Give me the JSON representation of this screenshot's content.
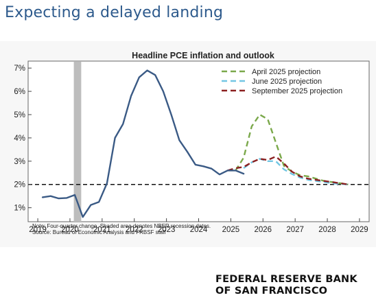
{
  "headline": "Expecting a delayed landing",
  "notes": {
    "line1": "Note: Four-quarter change. Shaded area denotes NBER recession dates.",
    "line2": "Source:  Bureau of Economic Analysis and FRBSF staff"
  },
  "brand": {
    "line1": "FEDERAL RESERVE BANK",
    "line2": "OF SAN FRANCISCO"
  },
  "chart_data": {
    "type": "line",
    "title": "Headline PCE inflation and outlook",
    "xlabel": "",
    "ylabel": "",
    "xlim": [
      2018.7,
      2029.3
    ],
    "ylim": [
      0.4,
      7.3
    ],
    "x_ticks": [
      2019,
      2020,
      2021,
      2022,
      2023,
      2024,
      2025,
      2026,
      2027,
      2028,
      2029
    ],
    "y_ticks": [
      1,
      2,
      3,
      4,
      5,
      6,
      7
    ],
    "y_tick_labels": [
      "1%",
      "2%",
      "3%",
      "4%",
      "5%",
      "6%",
      "7%"
    ],
    "grid": false,
    "legend_position": "top-right",
    "reference_line": {
      "y": 2,
      "style": "dashed",
      "color": "#111111"
    },
    "recession_shading": {
      "x_start": 2020.12,
      "x_end": 2020.35,
      "color": "#bdbdbd"
    },
    "series": [
      {
        "name": "",
        "style": "solid",
        "color": "#3a5a85",
        "x": [
          2019.15,
          2019.4,
          2019.65,
          2019.9,
          2020.15,
          2020.4,
          2020.65,
          2020.9,
          2021.15,
          2021.4,
          2021.65,
          2021.9,
          2022.15,
          2022.4,
          2022.65,
          2022.9,
          2023.15,
          2023.4,
          2023.65,
          2023.9,
          2024.15,
          2024.4,
          2024.65,
          2024.9,
          2025.15,
          2025.4
        ],
        "y": [
          1.45,
          1.5,
          1.4,
          1.42,
          1.55,
          0.6,
          1.12,
          1.25,
          2.05,
          4.0,
          4.6,
          5.8,
          6.6,
          6.9,
          6.7,
          6.0,
          5.0,
          3.9,
          3.4,
          2.85,
          2.78,
          2.68,
          2.43,
          2.6,
          2.6,
          2.46
        ]
      },
      {
        "name": "April 2025 projection",
        "style": "dashed",
        "color": "#7aa84a",
        "x": [
          2025.15,
          2025.4,
          2025.65,
          2025.9,
          2026.15,
          2026.4,
          2026.65,
          2026.9,
          2027.15,
          2027.4,
          2027.65,
          2027.9,
          2028.15,
          2028.4,
          2028.65
        ],
        "y": [
          2.6,
          3.15,
          4.5,
          5.0,
          4.8,
          3.8,
          2.8,
          2.55,
          2.4,
          2.35,
          2.25,
          2.15,
          2.1,
          2.05,
          2.0
        ]
      },
      {
        "name": "June 2025 projection",
        "style": "dashed",
        "color": "#72c6e3",
        "x": [
          2025.4,
          2025.65,
          2025.9,
          2026.15,
          2026.4,
          2026.65,
          2026.9,
          2027.15,
          2027.4,
          2027.65,
          2027.9,
          2028.15,
          2028.4,
          2028.65
        ],
        "y": [
          2.7,
          2.95,
          3.1,
          3.0,
          3.0,
          2.65,
          2.45,
          2.3,
          2.2,
          2.15,
          2.1,
          2.05,
          2.02,
          2.0
        ]
      },
      {
        "name": "September 2025 projection",
        "style": "dashed",
        "color": "#8b2020",
        "x": [
          2024.9,
          2025.15,
          2025.4,
          2025.65,
          2025.9,
          2026.15,
          2026.4,
          2026.65,
          2026.9,
          2027.15,
          2027.4,
          2027.65,
          2027.9,
          2028.15,
          2028.4,
          2028.65
        ],
        "y": [
          2.6,
          2.7,
          2.75,
          2.95,
          3.1,
          3.05,
          3.2,
          2.9,
          2.55,
          2.35,
          2.25,
          2.2,
          2.15,
          2.1,
          2.05,
          2.0
        ]
      }
    ]
  }
}
